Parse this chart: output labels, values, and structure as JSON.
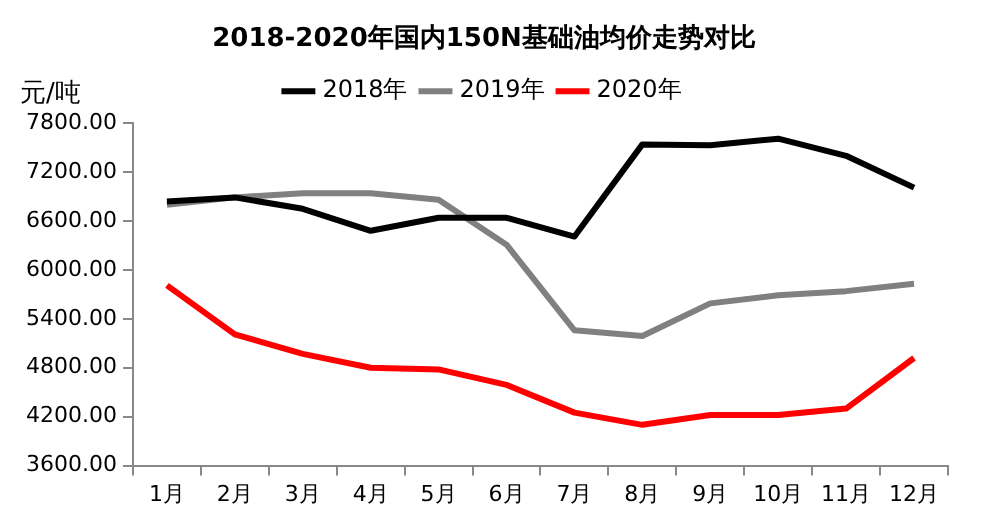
{
  "chart_data": {
    "type": "line",
    "title": "2018-2020年国内150N基础油均价走势对比",
    "ylabel": "元/吨",
    "categories": [
      "1月",
      "2月",
      "3月",
      "4月",
      "5月",
      "6月",
      "7月",
      "8月",
      "9月",
      "10月",
      "11月",
      "12月"
    ],
    "series": [
      {
        "name": "2018年",
        "color": "#000000",
        "values": [
          6840,
          6890,
          6750,
          6480,
          6640,
          6640,
          6410,
          7540,
          7530,
          7610,
          7400,
          7010
        ]
      },
      {
        "name": "2019年",
        "color": "#808080",
        "values": [
          6800,
          6890,
          6940,
          6940,
          6860,
          6310,
          5260,
          5190,
          5590,
          5690,
          5740,
          5830
        ]
      },
      {
        "name": "2020年",
        "color": "#ff0000",
        "values": [
          5810,
          5210,
          4970,
          4800,
          4780,
          4590,
          4250,
          4100,
          4220,
          4220,
          4300,
          4920
        ]
      }
    ],
    "ylim": [
      3600,
      7800
    ],
    "yticks": [
      {
        "value": 3600,
        "label": "3600.00"
      },
      {
        "value": 4200,
        "label": "4200.00"
      },
      {
        "value": 4800,
        "label": "4800.00"
      },
      {
        "value": 5400,
        "label": "5400.00"
      },
      {
        "value": 6000,
        "label": "6000.00"
      },
      {
        "value": 6600,
        "label": "6600.00"
      },
      {
        "value": 7200,
        "label": "7200.00"
      },
      {
        "value": 7800,
        "label": "7800.00"
      }
    ],
    "grid": false,
    "legend": "top",
    "marker": "none",
    "line_style": "solid"
  }
}
